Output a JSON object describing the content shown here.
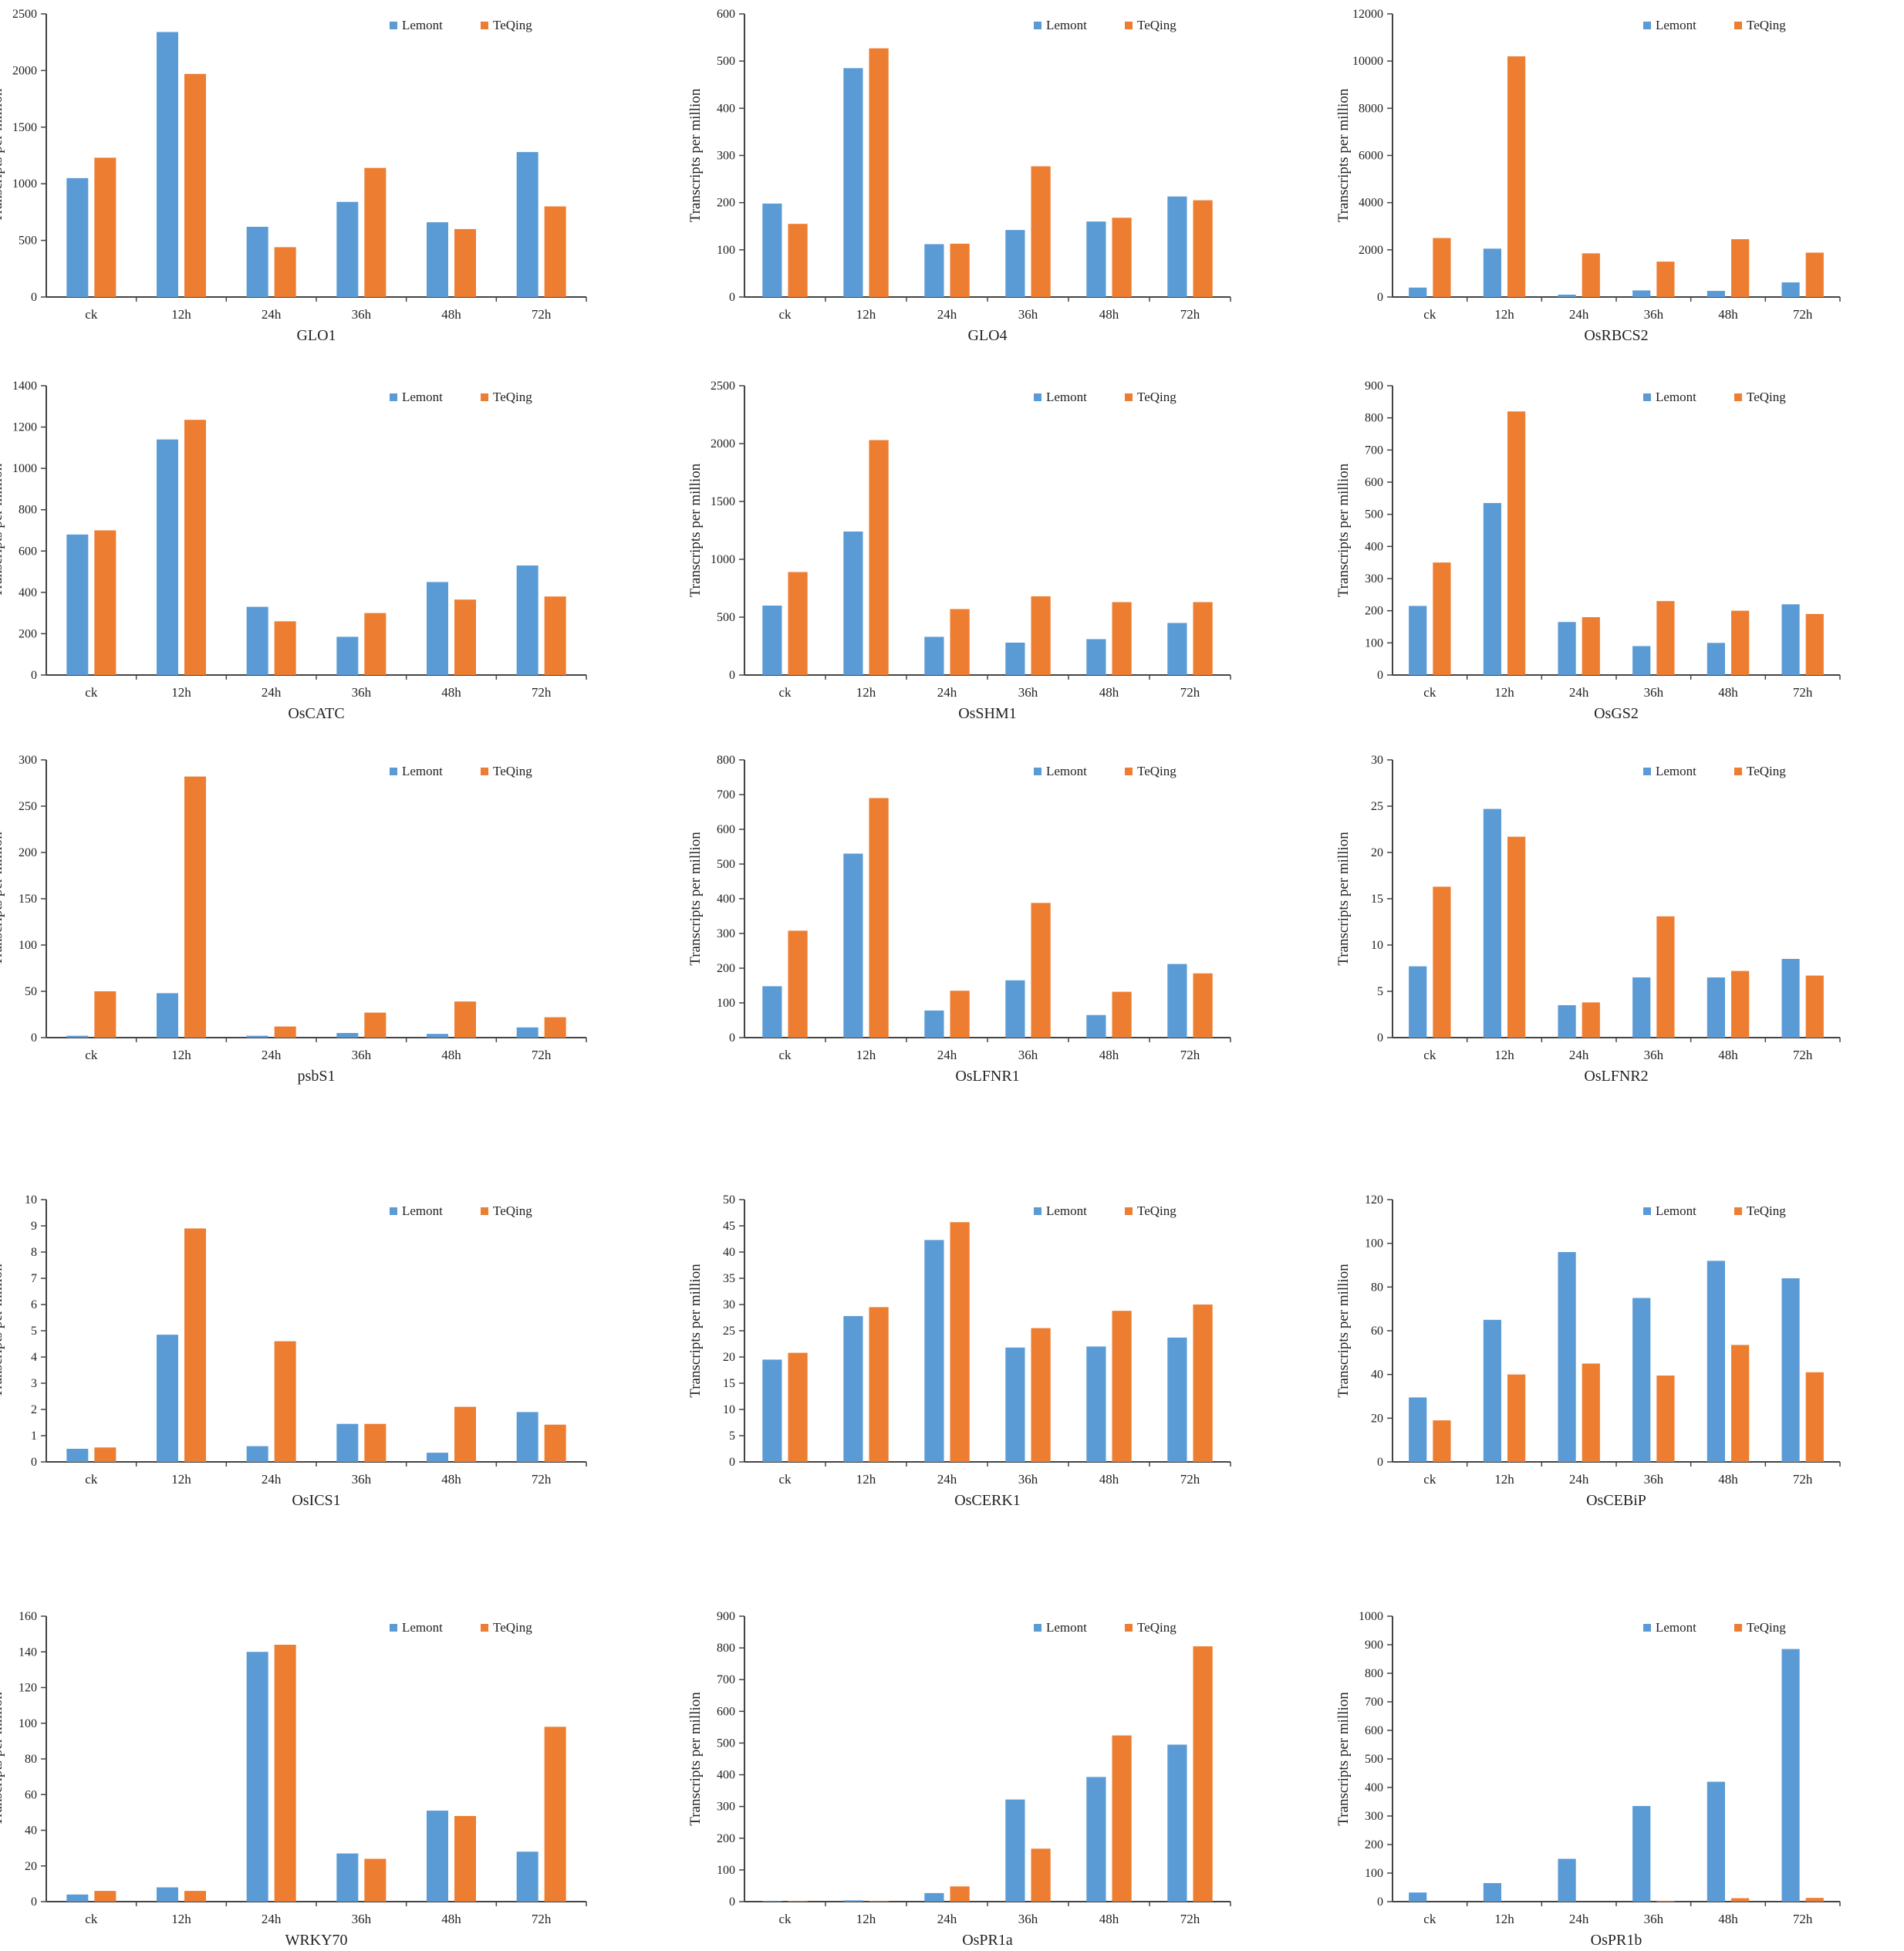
{
  "colors": {
    "Lemont": "#5B9BD5",
    "TeQing": "#ED7D31"
  },
  "legend": [
    "Lemont",
    "TeQing"
  ],
  "chart_data": [
    {
      "type": "bar",
      "title": "GLO1",
      "ylabel": "Transcripts per million",
      "categories": [
        "ck",
        "12h",
        "24h",
        "36h",
        "48h",
        "72h"
      ],
      "ylim": [
        0,
        2500
      ],
      "yticks": [
        0,
        500,
        1000,
        1500,
        2000,
        2500
      ],
      "series": [
        {
          "name": "Lemont",
          "values": [
            1050,
            2340,
            620,
            840,
            660,
            1280
          ]
        },
        {
          "name": "TeQing",
          "values": [
            1230,
            1970,
            440,
            1140,
            600,
            800
          ]
        }
      ]
    },
    {
      "type": "bar",
      "title": "GLO4",
      "ylabel": "Transcripts per million",
      "categories": [
        "ck",
        "12h",
        "24h",
        "36h",
        "48h",
        "72h"
      ],
      "ylim": [
        0,
        600
      ],
      "yticks": [
        0,
        100,
        200,
        300,
        400,
        500,
        600
      ],
      "series": [
        {
          "name": "Lemont",
          "values": [
            198,
            485,
            112,
            142,
            160,
            213
          ]
        },
        {
          "name": "TeQing",
          "values": [
            155,
            527,
            113,
            277,
            168,
            205
          ]
        }
      ]
    },
    {
      "type": "bar",
      "title": "OsRBCS2",
      "ylabel": "Transcripts per million",
      "categories": [
        "ck",
        "12h",
        "24h",
        "36h",
        "48h",
        "72h"
      ],
      "ylim": [
        0,
        12000
      ],
      "yticks": [
        0,
        2000,
        4000,
        6000,
        8000,
        10000,
        12000
      ],
      "series": [
        {
          "name": "Lemont",
          "values": [
            400,
            2050,
            100,
            280,
            260,
            620
          ]
        },
        {
          "name": "TeQing",
          "values": [
            2500,
            10200,
            1850,
            1500,
            2450,
            1880
          ]
        }
      ]
    },
    {
      "type": "bar",
      "title": "OsCATC",
      "ylabel": "Transcripts per million",
      "categories": [
        "ck",
        "12h",
        "24h",
        "36h",
        "48h",
        "72h"
      ],
      "ylim": [
        0,
        1400
      ],
      "yticks": [
        0,
        200,
        400,
        600,
        800,
        1000,
        1200,
        1400
      ],
      "series": [
        {
          "name": "Lemont",
          "values": [
            680,
            1140,
            330,
            185,
            450,
            530
          ]
        },
        {
          "name": "TeQing",
          "values": [
            700,
            1235,
            260,
            300,
            365,
            380
          ]
        }
      ]
    },
    {
      "type": "bar",
      "title": "OsSHM1",
      "ylabel": "Transcripts per million",
      "categories": [
        "ck",
        "12h",
        "24h",
        "36h",
        "48h",
        "72h"
      ],
      "ylim": [
        0,
        2500
      ],
      "yticks": [
        0,
        500,
        1000,
        1500,
        2000,
        2500
      ],
      "series": [
        {
          "name": "Lemont",
          "values": [
            600,
            1240,
            330,
            280,
            310,
            450
          ]
        },
        {
          "name": "TeQing",
          "values": [
            890,
            2030,
            570,
            680,
            630,
            630
          ]
        }
      ]
    },
    {
      "type": "bar",
      "title": "OsGS2",
      "ylabel": "Transcripts per million",
      "categories": [
        "ck",
        "12h",
        "24h",
        "36h",
        "48h",
        "72h"
      ],
      "ylim": [
        0,
        900
      ],
      "yticks": [
        0,
        100,
        200,
        300,
        400,
        500,
        600,
        700,
        800,
        900
      ],
      "series": [
        {
          "name": "Lemont",
          "values": [
            215,
            535,
            165,
            90,
            100,
            220
          ]
        },
        {
          "name": "TeQing",
          "values": [
            350,
            820,
            180,
            230,
            200,
            190
          ]
        }
      ]
    },
    {
      "type": "bar",
      "title": "psbS1",
      "ylabel": "Transcripts per million",
      "categories": [
        "ck",
        "12h",
        "24h",
        "36h",
        "48h",
        "72h"
      ],
      "ylim": [
        0,
        300
      ],
      "yticks": [
        0,
        50,
        100,
        150,
        200,
        250,
        300
      ],
      "series": [
        {
          "name": "Lemont",
          "values": [
            2,
            48,
            2,
            5,
            4,
            11
          ]
        },
        {
          "name": "TeQing",
          "values": [
            50,
            282,
            12,
            27,
            39,
            22
          ]
        }
      ]
    },
    {
      "type": "bar",
      "title": "OsLFNR1",
      "ylabel": "Transcripts per million",
      "categories": [
        "ck",
        "12h",
        "24h",
        "36h",
        "48h",
        "72h"
      ],
      "ylim": [
        0,
        800
      ],
      "yticks": [
        0,
        100,
        200,
        300,
        400,
        500,
        600,
        700,
        800
      ],
      "series": [
        {
          "name": "Lemont",
          "values": [
            148,
            530,
            78,
            165,
            65,
            212
          ]
        },
        {
          "name": "TeQing",
          "values": [
            308,
            690,
            135,
            388,
            132,
            185
          ]
        }
      ]
    },
    {
      "type": "bar",
      "title": "OsLFNR2",
      "ylabel": "Transcripts per million",
      "categories": [
        "ck",
        "12h",
        "24h",
        "36h",
        "48h",
        "72h"
      ],
      "ylim": [
        0,
        30
      ],
      "yticks": [
        0,
        5,
        10,
        15,
        20,
        25,
        30
      ],
      "series": [
        {
          "name": "Lemont",
          "values": [
            7.7,
            24.7,
            3.5,
            6.5,
            6.5,
            8.5
          ]
        },
        {
          "name": "TeQing",
          "values": [
            16.3,
            21.7,
            3.8,
            13.1,
            7.2,
            6.7
          ]
        }
      ]
    },
    {
      "type": "bar",
      "title": "OsICS1",
      "ylabel": "Transcripts per million",
      "categories": [
        "ck",
        "12h",
        "24h",
        "36h",
        "48h",
        "72h"
      ],
      "ylim": [
        0,
        10
      ],
      "yticks": [
        0,
        1,
        2,
        3,
        4,
        5,
        6,
        7,
        8,
        9,
        10
      ],
      "series": [
        {
          "name": "Lemont",
          "values": [
            0.5,
            4.85,
            0.6,
            1.45,
            0.35,
            1.9
          ]
        },
        {
          "name": "TeQing",
          "values": [
            0.55,
            8.9,
            4.6,
            1.45,
            2.1,
            1.42
          ]
        }
      ]
    },
    {
      "type": "bar",
      "title": "OsCERK1",
      "ylabel": "Transcripts per million",
      "categories": [
        "ck",
        "12h",
        "24h",
        "36h",
        "48h",
        "72h"
      ],
      "ylim": [
        0,
        50
      ],
      "yticks": [
        0,
        5,
        10,
        15,
        20,
        25,
        30,
        35,
        40,
        45,
        50
      ],
      "series": [
        {
          "name": "Lemont",
          "values": [
            19.5,
            27.8,
            42.3,
            21.8,
            22,
            23.7
          ]
        },
        {
          "name": "TeQing",
          "values": [
            20.8,
            29.5,
            45.7,
            25.5,
            28.8,
            30
          ]
        }
      ]
    },
    {
      "type": "bar",
      "title": "OsCEBiP",
      "ylabel": "Transcripts per million",
      "categories": [
        "ck",
        "12h",
        "24h",
        "36h",
        "48h",
        "72h"
      ],
      "ylim": [
        0,
        120
      ],
      "yticks": [
        0,
        20,
        40,
        60,
        80,
        100,
        120
      ],
      "series": [
        {
          "name": "Lemont",
          "values": [
            29.5,
            65,
            96,
            75,
            92,
            84
          ]
        },
        {
          "name": "TeQing",
          "values": [
            19,
            40,
            45,
            39.5,
            53.5,
            41
          ]
        }
      ]
    },
    {
      "type": "bar",
      "title": "WRKY70",
      "ylabel": "Transcripts per million",
      "categories": [
        "ck",
        "12h",
        "24h",
        "36h",
        "48h",
        "72h"
      ],
      "ylim": [
        0,
        160
      ],
      "yticks": [
        0,
        20,
        40,
        60,
        80,
        100,
        120,
        140,
        160
      ],
      "series": [
        {
          "name": "Lemont",
          "values": [
            4,
            8,
            140,
            27,
            51,
            28
          ]
        },
        {
          "name": "TeQing",
          "values": [
            6,
            6,
            144,
            24,
            48,
            98
          ]
        }
      ]
    },
    {
      "type": "bar",
      "title": "OsPR1a",
      "ylabel": "Transcripts per million",
      "categories": [
        "ck",
        "12h",
        "24h",
        "36h",
        "48h",
        "72h"
      ],
      "ylim": [
        0,
        900
      ],
      "yticks": [
        0,
        100,
        200,
        300,
        400,
        500,
        600,
        700,
        800,
        900
      ],
      "series": [
        {
          "name": "Lemont",
          "values": [
            2,
            4,
            27,
            322,
            393,
            495
          ]
        },
        {
          "name": "TeQing",
          "values": [
            2,
            2,
            48,
            167,
            524,
            805
          ]
        }
      ]
    },
    {
      "type": "bar",
      "title": "OsPR1b",
      "ylabel": "Transcripts per million",
      "categories": [
        "ck",
        "12h",
        "24h",
        "36h",
        "48h",
        "72h"
      ],
      "ylim": [
        0,
        1000
      ],
      "yticks": [
        0,
        100,
        200,
        300,
        400,
        500,
        600,
        700,
        800,
        900,
        1000
      ],
      "series": [
        {
          "name": "Lemont",
          "values": [
            32,
            65,
            150,
            335,
            420,
            885
          ]
        },
        {
          "name": "TeQing",
          "values": [
            0,
            0,
            0,
            3,
            12,
            13
          ]
        }
      ]
    }
  ]
}
